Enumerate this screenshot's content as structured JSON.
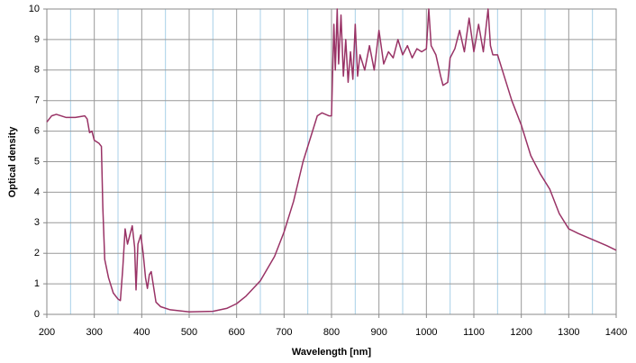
{
  "chart_data": {
    "type": "line",
    "xlabel": "Wavelength [nm]",
    "ylabel": "Optical density",
    "xlim": [
      200,
      1400
    ],
    "ylim": [
      0,
      10
    ],
    "xticks": [
      200,
      300,
      400,
      500,
      600,
      700,
      800,
      900,
      1000,
      1100,
      1200,
      1300,
      1400
    ],
    "xminor": [
      250,
      350,
      450,
      550,
      650,
      750,
      850,
      950,
      1050,
      1150,
      1250,
      1350
    ],
    "yticks": [
      0,
      1,
      2,
      3,
      4,
      5,
      6,
      7,
      8,
      9,
      10
    ],
    "grid": true,
    "x": [
      200,
      210,
      220,
      240,
      260,
      280,
      285,
      290,
      295,
      300,
      310,
      315,
      318,
      322,
      330,
      340,
      350,
      355,
      360,
      365,
      370,
      375,
      380,
      385,
      388,
      392,
      398,
      403,
      408,
      412,
      416,
      420,
      425,
      430,
      440,
      460,
      500,
      550,
      580,
      600,
      620,
      650,
      680,
      700,
      720,
      740,
      760,
      770,
      780,
      795,
      800,
      802,
      805,
      808,
      812,
      815,
      820,
      825,
      830,
      835,
      840,
      845,
      850,
      855,
      860,
      870,
      880,
      890,
      900,
      910,
      920,
      930,
      940,
      950,
      960,
      970,
      980,
      990,
      1000,
      1005,
      1010,
      1020,
      1030,
      1035,
      1045,
      1050,
      1060,
      1070,
      1080,
      1090,
      1100,
      1110,
      1120,
      1130,
      1135,
      1140,
      1150,
      1160,
      1180,
      1200,
      1220,
      1240,
      1260,
      1280,
      1300,
      1320,
      1350,
      1380,
      1400
    ],
    "series": [
      {
        "color": "#993366",
        "values": [
          6.3,
          6.5,
          6.55,
          6.45,
          6.45,
          6.5,
          6.4,
          5.95,
          6.0,
          5.7,
          5.6,
          5.5,
          3.5,
          1.8,
          1.2,
          0.7,
          0.5,
          0.45,
          1.5,
          2.8,
          2.3,
          2.6,
          2.9,
          2.2,
          0.8,
          2.3,
          2.6,
          2.0,
          1.2,
          0.85,
          1.3,
          1.4,
          0.9,
          0.4,
          0.25,
          0.15,
          0.08,
          0.1,
          0.2,
          0.35,
          0.6,
          1.1,
          1.9,
          2.7,
          3.7,
          5.0,
          6.0,
          6.5,
          6.6,
          6.5,
          6.5,
          7.7,
          9.5,
          8.0,
          10,
          8.2,
          9.8,
          7.8,
          9.0,
          7.6,
          8.6,
          7.7,
          9.5,
          7.8,
          8.5,
          8.0,
          8.8,
          8.0,
          9.3,
          8.2,
          8.6,
          8.4,
          9.0,
          8.5,
          8.8,
          8.4,
          8.7,
          8.6,
          8.7,
          10,
          8.8,
          8.5,
          7.8,
          7.5,
          7.6,
          8.4,
          8.7,
          9.3,
          8.6,
          9.7,
          8.6,
          9.5,
          8.6,
          10,
          8.8,
          8.5,
          8.5,
          8.0,
          7.0,
          6.2,
          5.2,
          4.6,
          4.1,
          3.3,
          2.8,
          2.65,
          2.45,
          2.25,
          2.1
        ]
      }
    ]
  }
}
